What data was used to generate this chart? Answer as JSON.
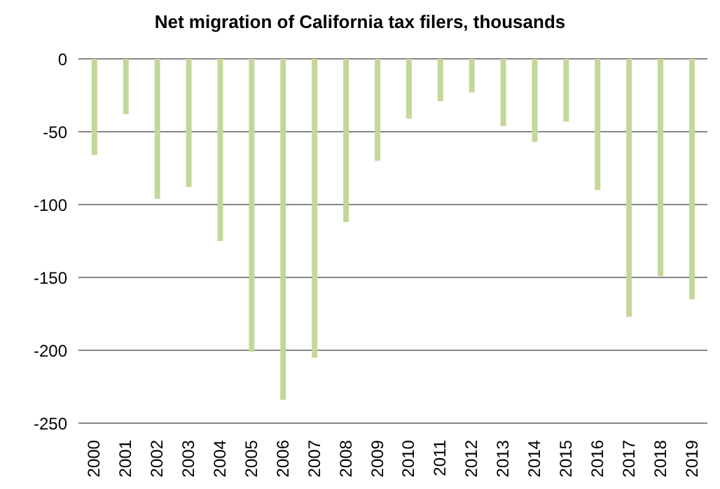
{
  "chart_data": {
    "type": "bar",
    "title": "Net migration of California tax filers, thousands",
    "categories": [
      "2000",
      "2001",
      "2002",
      "2003",
      "2004",
      "2005",
      "2006",
      "2007",
      "2008",
      "2009",
      "2010",
      "2011",
      "2012",
      "2013",
      "2014",
      "2015",
      "2016",
      "2017",
      "2018",
      "2019"
    ],
    "values": [
      -66,
      -38,
      -96,
      -88,
      -125,
      -201,
      -234,
      -205,
      -112,
      -70,
      -41,
      -29,
      -23,
      -46,
      -57,
      -43,
      -90,
      -177,
      -149,
      -165
    ],
    "color": "#c4d79b",
    "ylim": [
      -250,
      0
    ],
    "yticks": [
      -250,
      -200,
      -150,
      -100,
      -50,
      0
    ],
    "grid": "y"
  }
}
